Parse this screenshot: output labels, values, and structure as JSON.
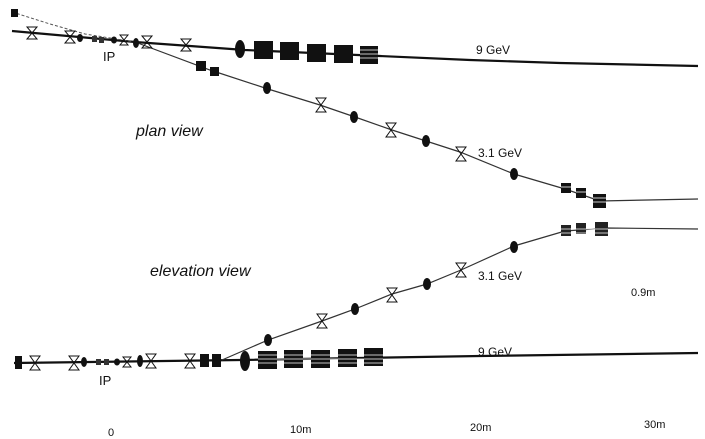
{
  "labels": {
    "plan_view": "plan view",
    "elevation_view": "elevation view",
    "ip": "IP",
    "high_energy": "9 GeV",
    "low_energy": "3.1 GeV",
    "separation": "0.9m"
  },
  "axis": {
    "ticks": [
      "0",
      "10m",
      "20m",
      "30m"
    ]
  },
  "colors": {
    "ink": "#111111",
    "background": "#ffffff"
  },
  "element_legend": {
    "quadrupole": "hourglass-icon",
    "sextupole": "ellipse-icon",
    "dipole": "block-icon"
  }
}
